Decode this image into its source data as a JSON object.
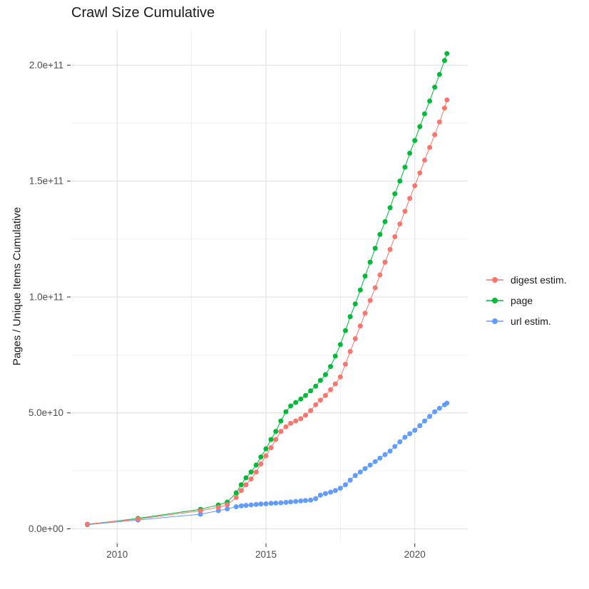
{
  "title": "Crawl Size Cumulative",
  "chart_data": {
    "type": "line",
    "markers": true,
    "title": "Crawl Size Cumulative",
    "xlabel": "",
    "ylabel": "Pages / Unique Items Cumulative",
    "legend_position": "right",
    "grid": "on",
    "xlim": [
      2008.46,
      2021.78
    ],
    "ylim": [
      -6000000000.0,
      215200000000.0
    ],
    "x_ticks": {
      "major": [
        2010,
        2015,
        2020
      ],
      "minor": [
        2012.5,
        2017.5
      ],
      "labels": [
        "2010",
        "2015",
        "2020"
      ]
    },
    "y_ticks": {
      "major": [
        0,
        50000000000.0,
        100000000000.0,
        150000000000.0,
        200000000000.0
      ],
      "minor": [
        25000000000.0,
        75000000000.0,
        125000000000.0,
        175000000000.0
      ],
      "labels": [
        "0.0e+00",
        "5.0e+10",
        "1.0e+11",
        "1.5e+11",
        "2.0e+11"
      ]
    },
    "series": [
      {
        "name": "digest estim.",
        "color": "#F8766D",
        "points": [
          [
            2009.0,
            2000000000.0
          ],
          [
            2010.7,
            4200000000.0
          ],
          [
            2012.8,
            7800000000.0
          ],
          [
            2013.4,
            9300000000.0
          ],
          [
            2013.7,
            10400000000.0
          ],
          [
            2014.0,
            13500000000.0
          ],
          [
            2014.17,
            16500000000.0
          ],
          [
            2014.33,
            19000000000.0
          ],
          [
            2014.5,
            21500000000.0
          ],
          [
            2014.67,
            24500000000.0
          ],
          [
            2014.83,
            28000000000.0
          ],
          [
            2015.0,
            31500000000.0
          ],
          [
            2015.17,
            35000000000.0
          ],
          [
            2015.33,
            38500000000.0
          ],
          [
            2015.5,
            42000000000.0
          ],
          [
            2015.67,
            44000000000.0
          ],
          [
            2015.83,
            45500000000.0
          ],
          [
            2016.0,
            46500000000.0
          ],
          [
            2016.17,
            47500000000.0
          ],
          [
            2016.33,
            49000000000.0
          ],
          [
            2016.5,
            51000000000.0
          ],
          [
            2016.67,
            53500000000.0
          ],
          [
            2016.83,
            55500000000.0
          ],
          [
            2017.0,
            57500000000.0
          ],
          [
            2017.17,
            60000000000.0
          ],
          [
            2017.33,
            62500000000.0
          ],
          [
            2017.5,
            65500000000.0
          ],
          [
            2017.67,
            71000000000.0
          ],
          [
            2017.83,
            76500000000.0
          ],
          [
            2018.0,
            82000000000.0
          ],
          [
            2018.17,
            87500000000.0
          ],
          [
            2018.33,
            93000000000.0
          ],
          [
            2018.5,
            98500000000.0
          ],
          [
            2018.67,
            104000000000.0
          ],
          [
            2018.83,
            109500000000.0
          ],
          [
            2019.0,
            115000000000.0
          ],
          [
            2019.17,
            120500000000.0
          ],
          [
            2019.33,
            126000000000.0
          ],
          [
            2019.5,
            131500000000.0
          ],
          [
            2019.67,
            137000000000.0
          ],
          [
            2019.83,
            142500000000.0
          ],
          [
            2020.0,
            148000000000.0
          ],
          [
            2020.17,
            153500000000.0
          ],
          [
            2020.33,
            159000000000.0
          ],
          [
            2020.5,
            164500000000.0
          ],
          [
            2020.67,
            170000000000.0
          ],
          [
            2020.83,
            175500000000.0
          ],
          [
            2021.0,
            181500000000.0
          ],
          [
            2021.08,
            185000000000.0
          ]
        ]
      },
      {
        "name": "page",
        "color": "#00BA38",
        "points": [
          [
            2009.0,
            1900000000.0
          ],
          [
            2010.7,
            4500000000.0
          ],
          [
            2012.8,
            8400000000.0
          ],
          [
            2013.4,
            10300000000.0
          ],
          [
            2013.7,
            11500000000.0
          ],
          [
            2014.0,
            15500000000.0
          ],
          [
            2014.17,
            19000000000.0
          ],
          [
            2014.33,
            22000000000.0
          ],
          [
            2014.5,
            24500000000.0
          ],
          [
            2014.67,
            27500000000.0
          ],
          [
            2014.83,
            31000000000.0
          ],
          [
            2015.0,
            34500000000.0
          ],
          [
            2015.17,
            38500000000.0
          ],
          [
            2015.33,
            42000000000.0
          ],
          [
            2015.5,
            46500000000.0
          ],
          [
            2015.67,
            50500000000.0
          ],
          [
            2015.83,
            53000000000.0
          ],
          [
            2016.0,
            54500000000.0
          ],
          [
            2016.17,
            56000000000.0
          ],
          [
            2016.33,
            57500000000.0
          ],
          [
            2016.5,
            59500000000.0
          ],
          [
            2016.67,
            61500000000.0
          ],
          [
            2016.83,
            64000000000.0
          ],
          [
            2017.0,
            66500000000.0
          ],
          [
            2017.17,
            70000000000.0
          ],
          [
            2017.33,
            74500000000.0
          ],
          [
            2017.5,
            79500000000.0
          ],
          [
            2017.67,
            85500000000.0
          ],
          [
            2017.83,
            91500000000.0
          ],
          [
            2018.0,
            97000000000.0
          ],
          [
            2018.17,
            103000000000.0
          ],
          [
            2018.33,
            109000000000.0
          ],
          [
            2018.5,
            115000000000.0
          ],
          [
            2018.67,
            121000000000.0
          ],
          [
            2018.83,
            127000000000.0
          ],
          [
            2019.0,
            132500000000.0
          ],
          [
            2019.17,
            138500000000.0
          ],
          [
            2019.33,
            144500000000.0
          ],
          [
            2019.5,
            150000000000.0
          ],
          [
            2019.67,
            156000000000.0
          ],
          [
            2019.83,
            162000000000.0
          ],
          [
            2020.0,
            167500000000.0
          ],
          [
            2020.17,
            173500000000.0
          ],
          [
            2020.33,
            179000000000.0
          ],
          [
            2020.5,
            184500000000.0
          ],
          [
            2020.67,
            190500000000.0
          ],
          [
            2020.83,
            196000000000.0
          ],
          [
            2021.0,
            202000000000.0
          ],
          [
            2021.08,
            205000000000.0
          ]
        ]
      },
      {
        "name": "url estim.",
        "color": "#619CFF",
        "points": [
          [
            2009.0,
            1800000000.0
          ],
          [
            2010.7,
            3800000000.0
          ],
          [
            2012.8,
            6300000000.0
          ],
          [
            2013.4,
            7800000000.0
          ],
          [
            2013.7,
            8600000000.0
          ],
          [
            2014.0,
            9500000000.0
          ],
          [
            2014.17,
            9900000000.0
          ],
          [
            2014.33,
            10100000000.0
          ],
          [
            2014.5,
            10300000000.0
          ],
          [
            2014.67,
            10500000000.0
          ],
          [
            2014.83,
            10700000000.0
          ],
          [
            2015.0,
            10800000000.0
          ],
          [
            2015.17,
            11000000000.0
          ],
          [
            2015.33,
            11100000000.0
          ],
          [
            2015.5,
            11200000000.0
          ],
          [
            2015.67,
            11400000000.0
          ],
          [
            2015.83,
            11600000000.0
          ],
          [
            2016.0,
            11800000000.0
          ],
          [
            2016.17,
            12000000000.0
          ],
          [
            2016.33,
            12200000000.0
          ],
          [
            2016.5,
            12400000000.0
          ],
          [
            2016.67,
            13000000000.0
          ],
          [
            2016.83,
            14500000000.0
          ],
          [
            2017.0,
            15200000000.0
          ],
          [
            2017.17,
            15800000000.0
          ],
          [
            2017.33,
            16500000000.0
          ],
          [
            2017.5,
            17500000000.0
          ],
          [
            2017.67,
            19000000000.0
          ],
          [
            2017.83,
            21000000000.0
          ],
          [
            2018.0,
            23000000000.0
          ],
          [
            2018.17,
            24500000000.0
          ],
          [
            2018.33,
            26000000000.0
          ],
          [
            2018.5,
            27500000000.0
          ],
          [
            2018.67,
            29000000000.0
          ],
          [
            2018.83,
            30500000000.0
          ],
          [
            2019.0,
            32000000000.0
          ],
          [
            2019.17,
            33500000000.0
          ],
          [
            2019.33,
            35500000000.0
          ],
          [
            2019.5,
            37500000000.0
          ],
          [
            2019.67,
            39500000000.0
          ],
          [
            2019.83,
            41000000000.0
          ],
          [
            2020.0,
            42500000000.0
          ],
          [
            2020.17,
            44500000000.0
          ],
          [
            2020.33,
            46500000000.0
          ],
          [
            2020.5,
            48500000000.0
          ],
          [
            2020.67,
            50500000000.0
          ],
          [
            2020.83,
            52000000000.0
          ],
          [
            2021.0,
            53500000000.0
          ],
          [
            2021.08,
            54200000000.0
          ]
        ]
      }
    ]
  },
  "legend": {
    "items": [
      {
        "label": "digest estim.",
        "color": "#F8766D"
      },
      {
        "label": "page",
        "color": "#00BA38"
      },
      {
        "label": "url estim.",
        "color": "#619CFF"
      }
    ]
  },
  "style_colors": {
    "grid_major": "#e3e3e3",
    "grid_minor": "#efefef",
    "tick": "#333333",
    "axis_text": "#4d4d4d"
  }
}
